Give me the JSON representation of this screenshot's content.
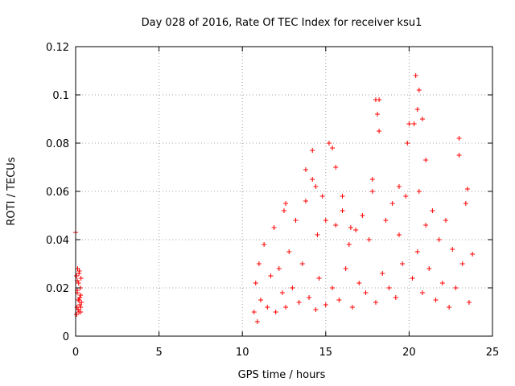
{
  "chart_data": {
    "type": "scatter",
    "title": "Day 028 of 2016, Rate Of TEC Index for receiver ksu1",
    "xlabel": "GPS time / hours",
    "ylabel": "ROTI / TECUs",
    "xlim": [
      0,
      25
    ],
    "ylim": [
      0,
      0.12
    ],
    "x_ticks": [
      0,
      5,
      10,
      15,
      20,
      25
    ],
    "x_tick_labels": [
      "0",
      "5",
      "10",
      "15",
      "20",
      "25"
    ],
    "y_ticks": [
      0,
      0.02,
      0.04,
      0.06,
      0.08,
      0.1,
      0.12
    ],
    "y_tick_labels": [
      "0",
      "0.02",
      "0.04",
      "0.06",
      "0.08",
      "0.1",
      "0.12"
    ],
    "grid": true,
    "marker": "+",
    "color": "#ff0000",
    "series": [
      {
        "name": "ROTI",
        "x": [
          0.0,
          0.05,
          0.08,
          0.1,
          0.12,
          0.15,
          0.18,
          0.2,
          0.22,
          0.25,
          0.28,
          0.3,
          0.32,
          0.35,
          0.05,
          0.1,
          0.15,
          0.2,
          0.25,
          0.3,
          0.1,
          0.2,
          0.3,
          10.7,
          10.8,
          10.9,
          11.0,
          11.1,
          11.3,
          11.5,
          11.7,
          11.9,
          12.0,
          12.2,
          12.4,
          12.5,
          12.6,
          12.8,
          13.0,
          13.2,
          13.4,
          13.6,
          13.8,
          14.0,
          14.2,
          14.4,
          14.5,
          14.6,
          14.8,
          15.0,
          15.2,
          15.4,
          15.6,
          15.8,
          16.0,
          16.2,
          16.4,
          16.6,
          16.8,
          17.0,
          17.2,
          17.4,
          17.6,
          17.8,
          18.0,
          18.2,
          18.4,
          18.6,
          18.8,
          19.0,
          19.2,
          19.4,
          19.6,
          19.8,
          20.0,
          20.2,
          20.4,
          20.5,
          20.6,
          20.8,
          21.0,
          21.2,
          21.4,
          21.6,
          21.8,
          22.0,
          22.2,
          22.4,
          22.6,
          22.8,
          23.0,
          23.2,
          23.4,
          23.6,
          23.8,
          13.8,
          14.2,
          14.4,
          15.0,
          15.4,
          15.6,
          16.0,
          17.8,
          18.0,
          18.1,
          18.2,
          19.4,
          19.9,
          20.3,
          20.5,
          20.6,
          20.8,
          21.0,
          23.0,
          23.5,
          12.6,
          16.5
        ],
        "y": [
          0.043,
          0.025,
          0.012,
          0.018,
          0.028,
          0.015,
          0.022,
          0.01,
          0.027,
          0.016,
          0.02,
          0.012,
          0.024,
          0.014,
          0.009,
          0.019,
          0.011,
          0.026,
          0.013,
          0.017,
          0.023,
          0.015,
          0.01,
          0.01,
          0.022,
          0.006,
          0.03,
          0.015,
          0.038,
          0.012,
          0.025,
          0.045,
          0.01,
          0.028,
          0.018,
          0.052,
          0.012,
          0.035,
          0.02,
          0.048,
          0.014,
          0.03,
          0.056,
          0.016,
          0.065,
          0.011,
          0.042,
          0.024,
          0.058,
          0.013,
          0.08,
          0.02,
          0.046,
          0.015,
          0.052,
          0.028,
          0.038,
          0.012,
          0.044,
          0.022,
          0.05,
          0.018,
          0.04,
          0.06,
          0.014,
          0.098,
          0.026,
          0.048,
          0.02,
          0.055,
          0.016,
          0.042,
          0.03,
          0.058,
          0.088,
          0.024,
          0.108,
          0.035,
          0.06,
          0.018,
          0.046,
          0.028,
          0.052,
          0.015,
          0.04,
          0.022,
          0.048,
          0.012,
          0.036,
          0.02,
          0.082,
          0.03,
          0.055,
          0.014,
          0.034,
          0.069,
          0.077,
          0.062,
          0.048,
          0.078,
          0.07,
          0.058,
          0.065,
          0.098,
          0.092,
          0.085,
          0.062,
          0.08,
          0.088,
          0.094,
          0.102,
          0.09,
          0.073,
          0.075,
          0.061,
          0.055,
          0.045
        ]
      }
    ]
  }
}
